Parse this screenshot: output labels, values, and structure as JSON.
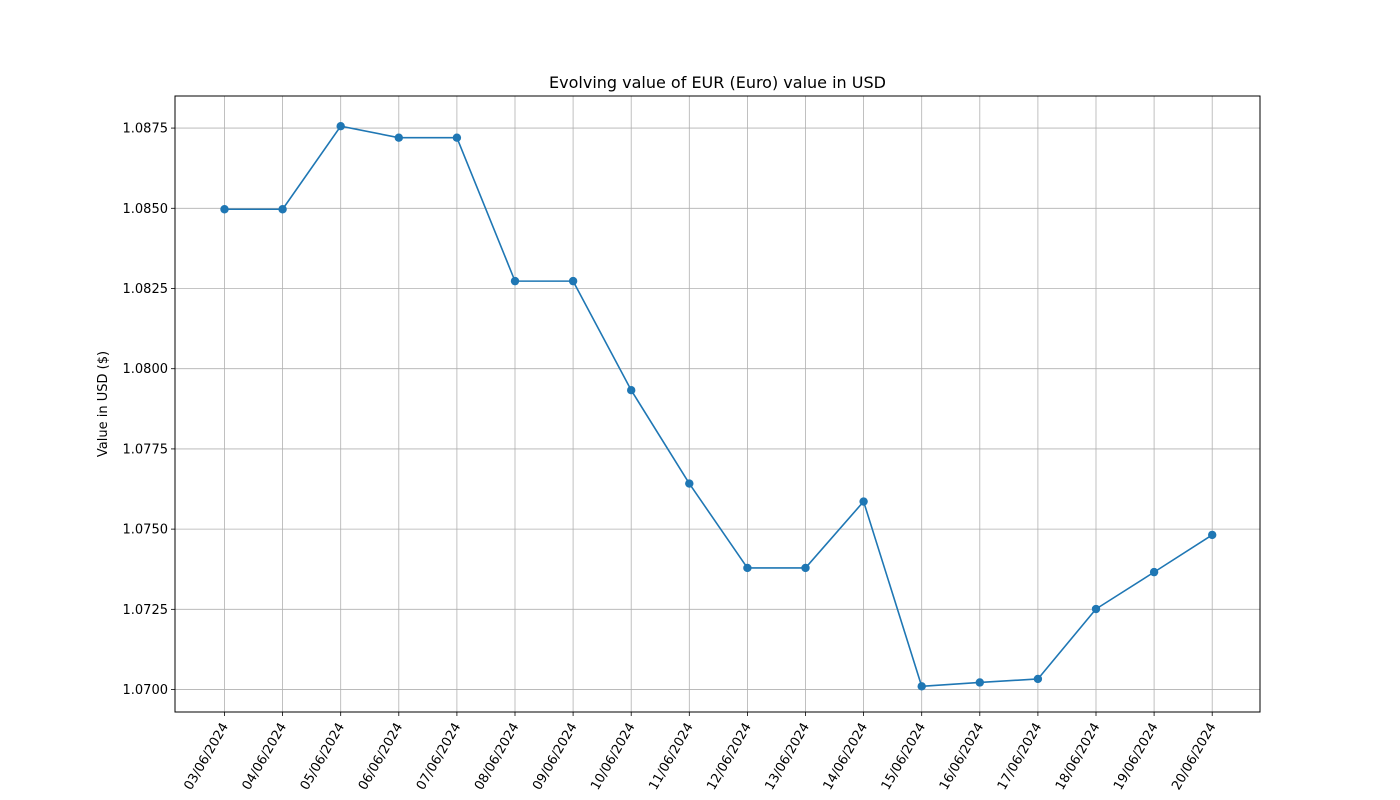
{
  "chart_data": {
    "type": "line",
    "title": "Evolving value of EUR (Euro) value in USD",
    "xlabel": "",
    "ylabel": "Value in USD ($)",
    "ylim": [
      1.0693,
      1.0885
    ],
    "y_ticks": [
      "1.0700",
      "1.0725",
      "1.0750",
      "1.0775",
      "1.0800",
      "1.0825",
      "1.0850",
      "1.0875"
    ],
    "grid": true,
    "legend": false,
    "categories": [
      "03/06/2024",
      "04/06/2024",
      "05/06/2024",
      "06/06/2024",
      "07/06/2024",
      "08/06/2024",
      "09/06/2024",
      "10/06/2024",
      "11/06/2024",
      "12/06/2024",
      "13/06/2024",
      "14/06/2024",
      "15/06/2024",
      "16/06/2024",
      "17/06/2024",
      "18/06/2024",
      "19/06/2024",
      "20/06/2024"
    ],
    "series": [
      {
        "color": "#1f77b4",
        "marker": "circle",
        "values": [
          1.08497,
          1.08497,
          1.08756,
          1.0872,
          1.0872,
          1.08273,
          1.08273,
          1.07933,
          1.07642,
          1.07379,
          1.07379,
          1.07586,
          1.0701,
          1.07022,
          1.07033,
          1.07251,
          1.07366,
          1.07482
        ]
      }
    ]
  }
}
